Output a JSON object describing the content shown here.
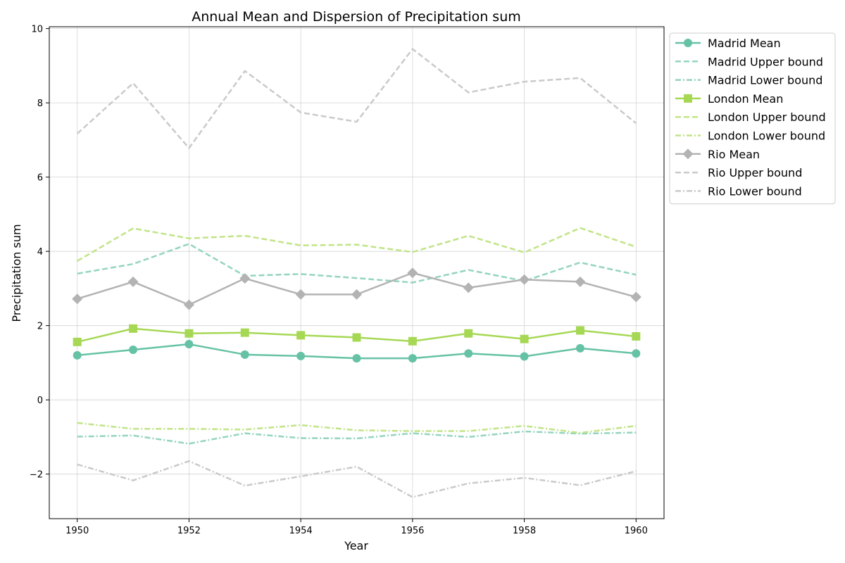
{
  "chart_data": {
    "type": "line",
    "title": "Annual Mean and Dispersion of Precipitation sum",
    "xlabel": "Year",
    "ylabel": "Precipitation sum",
    "xlim": [
      1949.5,
      1960.5
    ],
    "ylim": [
      -3.2,
      10.05
    ],
    "xticks": [
      1950,
      1952,
      1954,
      1956,
      1958,
      1960
    ],
    "yticks": [
      -2,
      0,
      2,
      4,
      6,
      8,
      10
    ],
    "ytick_labels": [
      "−2",
      "0",
      "2",
      "4",
      "6",
      "8",
      "10"
    ],
    "grid": true,
    "legend_position": "outside-right-top",
    "x": [
      1950,
      1951,
      1952,
      1953,
      1954,
      1955,
      1956,
      1957,
      1958,
      1959,
      1960
    ],
    "series": [
      {
        "name": "Madrid Mean",
        "style": "solid",
        "marker": "circle",
        "color": "#66c2a5",
        "values": [
          1.2,
          1.35,
          1.5,
          1.22,
          1.18,
          1.12,
          1.12,
          1.25,
          1.17,
          1.39,
          1.25
        ]
      },
      {
        "name": "Madrid Upper bound",
        "style": "dashed",
        "marker": "none",
        "color": "#94d4c0",
        "values": [
          3.4,
          3.66,
          4.2,
          3.34,
          3.39,
          3.28,
          3.16,
          3.5,
          3.2,
          3.7,
          3.37
        ]
      },
      {
        "name": "Madrid Lower bound",
        "style": "dashdot",
        "marker": "none",
        "color": "#94d4c0",
        "values": [
          -0.99,
          -0.96,
          -1.18,
          -0.9,
          -1.03,
          -1.04,
          -0.9,
          -1.0,
          -0.85,
          -0.91,
          -0.88
        ]
      },
      {
        "name": "London Mean",
        "style": "solid",
        "marker": "square",
        "color": "#a6d854",
        "values": [
          1.56,
          1.92,
          1.79,
          1.81,
          1.74,
          1.68,
          1.58,
          1.79,
          1.64,
          1.87,
          1.71
        ]
      },
      {
        "name": "London Upper bound",
        "style": "dashed",
        "marker": "none",
        "color": "#c1e487",
        "values": [
          3.74,
          4.62,
          4.35,
          4.42,
          4.16,
          4.18,
          3.98,
          4.42,
          3.97,
          4.63,
          4.12
        ]
      },
      {
        "name": "London Lower bound",
        "style": "dashdot",
        "marker": "none",
        "color": "#c1e487",
        "values": [
          -0.62,
          -0.78,
          -0.78,
          -0.8,
          -0.68,
          -0.82,
          -0.84,
          -0.84,
          -0.7,
          -0.89,
          -0.7
        ]
      },
      {
        "name": "Rio Mean",
        "style": "solid",
        "marker": "diamond",
        "color": "#b3b3b3",
        "values": [
          2.72,
          3.18,
          2.56,
          3.27,
          2.84,
          2.84,
          3.42,
          3.02,
          3.24,
          3.18,
          2.77
        ]
      },
      {
        "name": "Rio Upper bound",
        "style": "dashed",
        "marker": "none",
        "color": "#cacaca",
        "values": [
          7.17,
          8.53,
          6.78,
          8.86,
          7.74,
          7.49,
          9.45,
          8.28,
          8.57,
          8.67,
          7.45
        ]
      },
      {
        "name": "Rio Lower bound",
        "style": "dashdot",
        "marker": "none",
        "color": "#cacaca",
        "values": [
          -1.74,
          -2.17,
          -1.65,
          -2.31,
          -2.06,
          -1.8,
          -2.62,
          -2.25,
          -2.1,
          -2.3,
          -1.92
        ]
      }
    ]
  }
}
